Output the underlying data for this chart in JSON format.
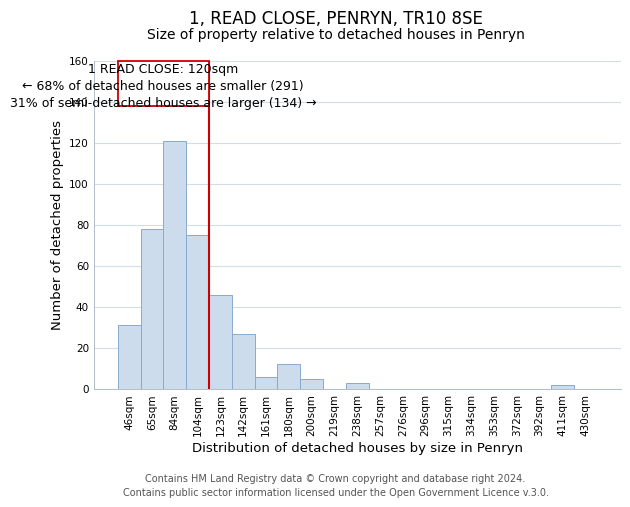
{
  "title": "1, READ CLOSE, PENRYN, TR10 8SE",
  "subtitle": "Size of property relative to detached houses in Penryn",
  "xlabel": "Distribution of detached houses by size in Penryn",
  "ylabel": "Number of detached properties",
  "footer_line1": "Contains HM Land Registry data © Crown copyright and database right 2024.",
  "footer_line2": "Contains public sector information licensed under the Open Government Licence v.3.0.",
  "bin_labels": [
    "46sqm",
    "65sqm",
    "84sqm",
    "104sqm",
    "123sqm",
    "142sqm",
    "161sqm",
    "180sqm",
    "200sqm",
    "219sqm",
    "238sqm",
    "257sqm",
    "276sqm",
    "296sqm",
    "315sqm",
    "334sqm",
    "353sqm",
    "372sqm",
    "392sqm",
    "411sqm",
    "430sqm"
  ],
  "bar_values": [
    31,
    78,
    121,
    75,
    46,
    27,
    6,
    12,
    5,
    0,
    3,
    0,
    0,
    0,
    0,
    0,
    0,
    0,
    0,
    2,
    0
  ],
  "bar_color": "#ccdcec",
  "bar_edge_color": "#88aacc",
  "highlight_line_color": "#cc0000",
  "annotation_line1": "1 READ CLOSE: 120sqm",
  "annotation_line2": "← 68% of detached houses are smaller (291)",
  "annotation_line3": "31% of semi-detached houses are larger (134) →",
  "ylim": [
    0,
    160
  ],
  "yticks": [
    0,
    20,
    40,
    60,
    80,
    100,
    120,
    140,
    160
  ],
  "background_color": "#ffffff",
  "grid_color": "#d0dce8",
  "title_fontsize": 12,
  "subtitle_fontsize": 10,
  "axis_label_fontsize": 9.5,
  "tick_fontsize": 7.5,
  "annotation_fontsize": 9,
  "footer_fontsize": 7
}
